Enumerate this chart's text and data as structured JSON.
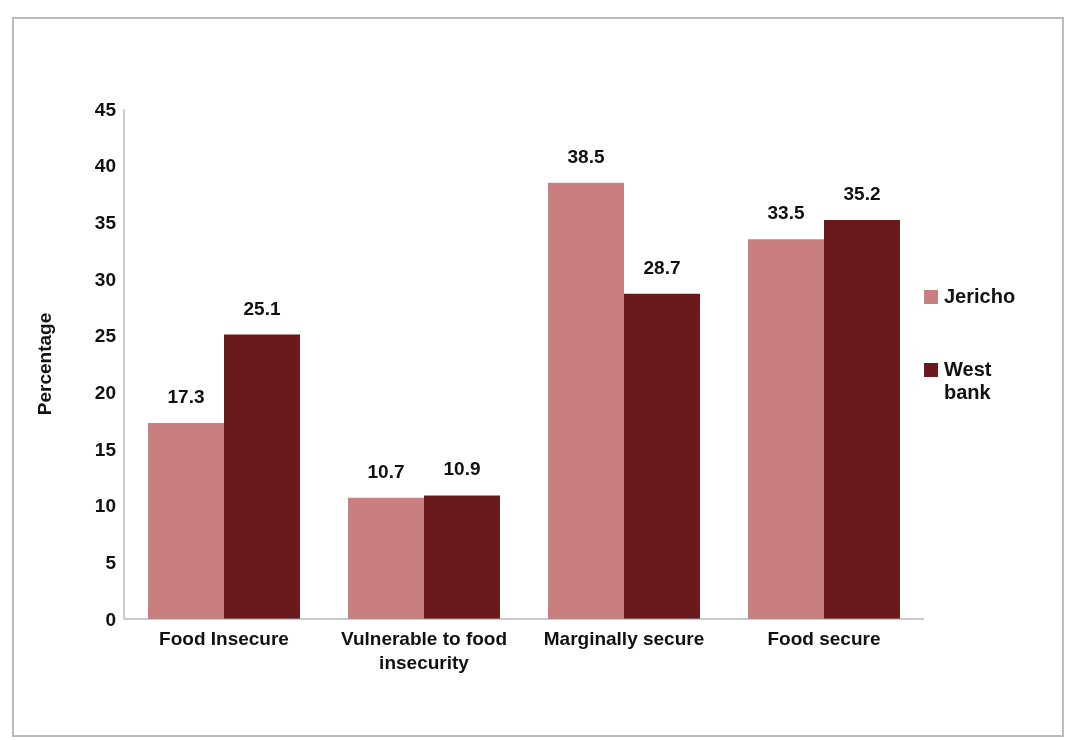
{
  "chart_data": {
    "type": "bar",
    "ylabel": "Percentage",
    "categories": [
      "Food Insecure",
      "Vulnerable to food insecurity",
      "Marginally secure",
      "Food secure"
    ],
    "series": [
      {
        "name": "Jericho",
        "color": "#c97f7f",
        "values": [
          17.3,
          10.7,
          38.5,
          33.5
        ]
      },
      {
        "name": "West bank",
        "color": "#6b1a1c",
        "values": [
          25.1,
          10.9,
          28.7,
          35.2
        ]
      }
    ],
    "ylim": [
      0,
      45
    ],
    "yticks": [
      0,
      5,
      10,
      15,
      20,
      25,
      30,
      35,
      40,
      45
    ],
    "data_labels": true,
    "legend": "right",
    "grid": false
  }
}
